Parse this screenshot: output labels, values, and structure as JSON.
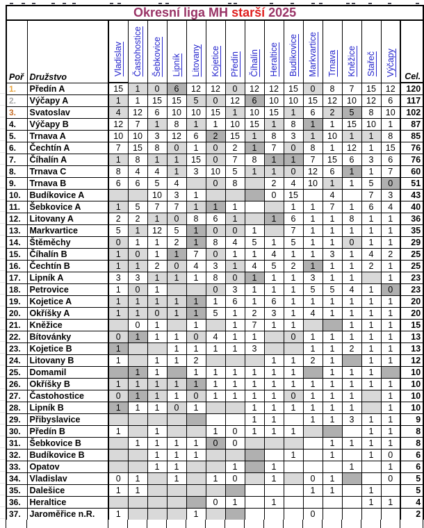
{
  "title": {
    "league": "Okresní liga MH ",
    "category": "starší",
    "year": " 2025"
  },
  "columns": {
    "rank": "Poř",
    "team": "Družstvo",
    "total": "Cel.",
    "events": [
      "Vladislav",
      "Častohostice",
      "Šebkovice",
      "Lipník",
      "Litovany",
      "Kojetice",
      "Předín",
      "Číhalín",
      "Heraltice",
      "Budíkovice",
      "Markvartice",
      "Trnava",
      "Kněžice",
      "Stařeč",
      "Výčapy"
    ]
  },
  "colors": {
    "title_purple": "#993366",
    "title_red": "#e02020",
    "link_blue": "#2222cc",
    "rank_gold": "#e8a33d",
    "rank_silver": "#a8a8a8",
    "rank_bronze": "#c8702b",
    "shade_light": "#d9d9d9",
    "shade_dark": "#b0b0b0"
  },
  "rows": [
    {
      "rank": "1.",
      "team": "Předín A",
      "medal": "gold",
      "cells": [
        "15",
        "1",
        "0",
        "6",
        "12",
        "12",
        "0",
        "12",
        "12",
        "15",
        "0",
        "8",
        "7",
        "15",
        "12"
      ],
      "total": "120",
      "shade_light": [
        1,
        2,
        6,
        10
      ],
      "shade_dark": [
        3
      ]
    },
    {
      "rank": "2.",
      "team": "Výčapy A",
      "medal": "silver",
      "cells": [
        "1",
        "1",
        "15",
        "15",
        "5",
        "0",
        "12",
        "6",
        "10",
        "10",
        "15",
        "12",
        "10",
        "12",
        "6"
      ],
      "total": "117",
      "shade_light": [
        0,
        4,
        5
      ],
      "shade_dark": [
        7
      ]
    },
    {
      "rank": "3.",
      "team": "Svatoslav",
      "medal": "bronze",
      "cells": [
        "4",
        "12",
        "6",
        "10",
        "10",
        "15",
        "1",
        "10",
        "15",
        "1",
        "6",
        "2",
        "5",
        "8",
        "10"
      ],
      "total": "102",
      "shade_light": [
        0,
        6,
        9,
        11
      ],
      "shade_dark": [
        12
      ]
    },
    {
      "rank": "4.",
      "team": "Výčapy B",
      "cells": [
        "12",
        "7",
        "1",
        "8",
        "1",
        "1",
        "10",
        "15",
        "1",
        "8",
        "1",
        "1",
        "15",
        "10",
        "1"
      ],
      "total": "87",
      "shade_light": [
        2,
        4,
        8
      ],
      "shade_dark": [
        10
      ]
    },
    {
      "rank": "5.",
      "team": "Trnava A",
      "cells": [
        "10",
        "10",
        "3",
        "12",
        "6",
        "2",
        "15",
        "1",
        "8",
        "3",
        "1",
        "10",
        "1",
        "1",
        "8"
      ],
      "total": "85",
      "shade_light": [
        7,
        10,
        12,
        13
      ],
      "shade_dark": [
        5
      ]
    },
    {
      "rank": "6.",
      "team": "Čechtín A",
      "cells": [
        "7",
        "15",
        "8",
        "0",
        "1",
        "0",
        "2",
        "1",
        "7",
        "0",
        "8",
        "1",
        "12",
        "1",
        "15"
      ],
      "total": "76",
      "shade_light": [
        3,
        5,
        9
      ],
      "shade_dark": [
        7
      ]
    },
    {
      "rank": "7.",
      "team": "Číhalín A",
      "cells": [
        "1",
        "8",
        "1",
        "1",
        "15",
        "0",
        "7",
        "8",
        "1",
        "1",
        "7",
        "15",
        "6",
        "3",
        "6"
      ],
      "total": "76",
      "shade_light": [
        0,
        2,
        3,
        5
      ],
      "shade_dark": [
        8,
        9
      ]
    },
    {
      "rank": "8.",
      "team": "Trnava C",
      "cells": [
        "8",
        "4",
        "4",
        "1",
        "3",
        "10",
        "5",
        "1",
        "1",
        "0",
        "12",
        "6",
        "1",
        "1",
        "7"
      ],
      "total": "60",
      "shade_light": [
        3,
        7,
        8,
        9
      ],
      "shade_dark": [
        12
      ]
    },
    {
      "rank": "9.",
      "team": "Trnava B",
      "cells": [
        "6",
        "6",
        "5",
        "4",
        "",
        "0",
        "8",
        "",
        "2",
        "4",
        "10",
        "1",
        "1",
        "5",
        "0"
      ],
      "total": "51",
      "shade_light": [
        4,
        5,
        7,
        11
      ],
      "shade_dark": [
        14
      ]
    },
    {
      "rank": "10.",
      "team": "Budíkovice A",
      "cells": [
        "",
        "",
        "10",
        "3",
        "1",
        "",
        "",
        "",
        "0",
        "15",
        "",
        "4",
        "",
        "7",
        "3"
      ],
      "total": "43",
      "shade_light": [
        0,
        1,
        5,
        6
      ],
      "shade_dark": [
        7
      ]
    },
    {
      "rank": "11.",
      "team": "Šebkovice A",
      "cells": [
        "1",
        "5",
        "7",
        "7",
        "1",
        "1",
        "1",
        "",
        "",
        "1",
        "1",
        "7",
        "1",
        "6",
        "4"
      ],
      "total": "40",
      "shade_light": [
        0,
        4,
        8
      ],
      "shade_dark": [
        5
      ]
    },
    {
      "rank": "12.",
      "team": "Litovany A",
      "cells": [
        "2",
        "2",
        "1",
        "0",
        "8",
        "6",
        "1",
        "",
        "1",
        "6",
        "1",
        "1",
        "8",
        "1",
        "1"
      ],
      "total": "36",
      "shade_light": [
        2,
        3,
        6,
        7
      ],
      "shade_dark": [
        8
      ]
    },
    {
      "rank": "13.",
      "team": "Markvartice",
      "cells": [
        "5",
        "1",
        "12",
        "5",
        "1",
        "0",
        "0",
        "1",
        "",
        "7",
        "1",
        "1",
        "1",
        "1",
        "1"
      ],
      "total": "35",
      "shade_light": [
        1,
        5,
        6,
        8
      ],
      "shade_dark": [
        4
      ]
    },
    {
      "rank": "14.",
      "team": "Štěměchy",
      "cells": [
        "0",
        "1",
        "1",
        "2",
        "1",
        "8",
        "4",
        "5",
        "1",
        "5",
        "1",
        "1",
        "0",
        "1",
        "1"
      ],
      "total": "29",
      "shade_light": [
        0,
        12
      ],
      "shade_dark": [
        4
      ]
    },
    {
      "rank": "15.",
      "team": "Číhalín B",
      "cells": [
        "1",
        "0",
        "1",
        "1",
        "7",
        "0",
        "1",
        "1",
        "4",
        "1",
        "1",
        "3",
        "1",
        "4",
        "2"
      ],
      "total": "25",
      "shade_light": [
        0,
        1,
        5
      ],
      "shade_dark": [
        3
      ]
    },
    {
      "rank": "16.",
      "team": "Čechtín B",
      "cells": [
        "1",
        "1",
        "2",
        "0",
        "4",
        "3",
        "1",
        "4",
        "5",
        "2",
        "1",
        "1",
        "1",
        "2",
        "1"
      ],
      "total": "25",
      "shade_light": [
        0,
        1,
        3,
        6
      ],
      "shade_dark": [
        10
      ]
    },
    {
      "rank": "17.",
      "team": "Lipník A",
      "cells": [
        "3",
        "3",
        "1",
        "1",
        "1",
        "8",
        "0",
        "1",
        "1",
        "1",
        "3",
        "1",
        "1",
        "",
        "1"
      ],
      "total": "23",
      "shade_light": [
        2,
        3,
        6,
        13
      ],
      "shade_dark": [
        7
      ]
    },
    {
      "rank": "18.",
      "team": "Petrovice",
      "cells": [
        "1",
        "0",
        "1",
        "",
        "",
        "0",
        "3",
        "1",
        "1",
        "1",
        "5",
        "5",
        "4",
        "1",
        "0"
      ],
      "total": "23",
      "shade_light": [
        1,
        3,
        4,
        5
      ],
      "shade_dark": [
        14
      ]
    },
    {
      "rank": "19.",
      "team": "Kojetice A",
      "cells": [
        "1",
        "1",
        "1",
        "1",
        "1",
        "1",
        "6",
        "1",
        "6",
        "1",
        "1",
        "1",
        "1",
        "1",
        "1"
      ],
      "total": "20",
      "shade_light": [
        0,
        1,
        2,
        3
      ],
      "shade_dark": [
        4
      ]
    },
    {
      "rank": "20.",
      "team": "Okříšky A",
      "cells": [
        "1",
        "1",
        "0",
        "1",
        "1",
        "5",
        "1",
        "2",
        "3",
        "1",
        "4",
        "1",
        "1",
        "1",
        "1"
      ],
      "total": "20",
      "shade_light": [
        0,
        1,
        2,
        3
      ],
      "shade_dark": [
        4
      ]
    },
    {
      "rank": "21.",
      "team": "Kněžice",
      "cells": [
        "",
        "0",
        "1",
        "",
        "1",
        "",
        "1",
        "7",
        "1",
        "1",
        "",
        "",
        "1",
        "1",
        "1"
      ],
      "total": "15",
      "shade_light": [
        0,
        3,
        5,
        10
      ],
      "shade_dark": [
        11
      ]
    },
    {
      "rank": "22.",
      "team": "Bítovánky",
      "cells": [
        "0",
        "1",
        "1",
        "1",
        "0",
        "4",
        "1",
        "1",
        "",
        "0",
        "1",
        "1",
        "1",
        "1",
        "1"
      ],
      "total": "13",
      "shade_light": [
        0,
        4,
        8,
        9
      ],
      "shade_dark": [
        1
      ]
    },
    {
      "rank": "23.",
      "team": "Kojetice B",
      "cells": [
        "1",
        "",
        "",
        "1",
        "1",
        "1",
        "1",
        "3",
        "",
        "",
        "1",
        "1",
        "2",
        "1",
        "1"
      ],
      "total": "13",
      "shade_light": [
        1,
        2,
        8,
        9
      ],
      "shade_dark": [
        0
      ]
    },
    {
      "rank": "24.",
      "team": "Litovany B",
      "cells": [
        "1",
        "",
        "1",
        "1",
        "2",
        "",
        "",
        "",
        "1",
        "1",
        "2",
        "1",
        "",
        "1",
        "1"
      ],
      "total": "12",
      "shade_light": [
        1,
        5,
        6,
        7
      ],
      "shade_dark": [
        12
      ]
    },
    {
      "rank": "25.",
      "team": "Domamil",
      "cells": [
        "",
        "1",
        "1",
        "",
        "1",
        "1",
        "1",
        "1",
        "1",
        "1",
        "",
        "1",
        "1",
        "1",
        ""
      ],
      "total": "10",
      "shade_light": [],
      "shade_dark": [
        0,
        1,
        3,
        10,
        14
      ]
    },
    {
      "rank": "26.",
      "team": "Okříšky B",
      "cells": [
        "1",
        "1",
        "1",
        "1",
        "1",
        "1",
        "1",
        "1",
        "1",
        "1",
        "1",
        "1",
        "1",
        "1",
        "1"
      ],
      "total": "10",
      "shade_light": [
        0,
        1,
        2,
        3
      ],
      "shade_dark": [
        4
      ]
    },
    {
      "rank": "27.",
      "team": "Častohostice",
      "cells": [
        "0",
        "1",
        "1",
        "1",
        "0",
        "1",
        "1",
        "1",
        "1",
        "0",
        "1",
        "1",
        "1",
        "",
        "1"
      ],
      "total": "10",
      "shade_light": [
        0,
        2,
        4,
        9,
        13
      ],
      "shade_dark": [
        1
      ]
    },
    {
      "rank": "28.",
      "team": "Lipník B",
      "cells": [
        "1",
        "1",
        "1",
        "0",
        "1",
        "",
        "",
        "1",
        "1",
        "1",
        "1",
        "1",
        "1",
        "",
        "1"
      ],
      "total": "10",
      "shade_light": [
        3,
        5,
        6,
        13
      ],
      "shade_dark": [
        0
      ]
    },
    {
      "rank": "29.",
      "team": "Přibyslavice",
      "cells": [
        "",
        "",
        "",
        "",
        "",
        "",
        "",
        "1",
        "1",
        "",
        "1",
        "1",
        "3",
        "1",
        "1"
      ],
      "total": "9",
      "shade_light": [
        0,
        1,
        2,
        3
      ],
      "shade_dark": [
        4
      ]
    },
    {
      "rank": "30.",
      "team": "Předín B",
      "cells": [
        "1",
        "",
        "1",
        "",
        "",
        "1",
        "0",
        "1",
        "1",
        "1",
        "",
        "",
        "",
        "1",
        "1"
      ],
      "total": "8",
      "shade_light": [
        1,
        3,
        4,
        10
      ],
      "shade_dark": [
        11
      ]
    },
    {
      "rank": "31.",
      "team": "Šebkovice B",
      "cells": [
        "",
        "1",
        "1",
        "1",
        "1",
        "0",
        "0",
        "",
        "",
        "",
        "",
        "1",
        "1",
        "1",
        "1"
      ],
      "total": "8",
      "shade_light": [
        0,
        7,
        8,
        9
      ],
      "shade_dark": [
        5
      ]
    },
    {
      "rank": "32.",
      "team": "Budíkovice B",
      "cells": [
        "",
        "",
        "1",
        "1",
        "1",
        "",
        "",
        "",
        "",
        "1",
        "",
        "1",
        "",
        "1",
        "0"
      ],
      "total": "6",
      "shade_light": [
        0,
        1,
        5,
        6
      ],
      "shade_dark": [
        7
      ]
    },
    {
      "rank": "33.",
      "team": "Opatov",
      "cells": [
        "",
        "",
        "1",
        "1",
        "",
        "",
        "1",
        "",
        "1",
        "",
        "",
        "",
        "1",
        "",
        "1"
      ],
      "total": "6",
      "shade_light": [
        0,
        1,
        4,
        5
      ],
      "shade_dark": [
        7
      ]
    },
    {
      "rank": "34.",
      "team": "Vladislav",
      "cells": [
        "0",
        "1",
        "",
        "1",
        "",
        "1",
        "0",
        "",
        "1",
        "",
        "0",
        "1",
        "",
        "",
        "0"
      ],
      "total": "5",
      "shade_light": [
        2,
        4,
        7,
        9
      ],
      "shade_dark": [
        12
      ]
    },
    {
      "rank": "35.",
      "team": "Dalešice",
      "cells": [
        "1",
        "1",
        "",
        "",
        "",
        "",
        "",
        "",
        "",
        "",
        "1",
        "1",
        "",
        "1",
        ""
      ],
      "total": "5",
      "shade_light": [
        2,
        3,
        4,
        5
      ],
      "shade_dark": [
        6
      ]
    },
    {
      "rank": "36.",
      "team": "Heraltice",
      "cells": [
        "",
        "",
        "",
        "",
        "",
        "0",
        "1",
        "",
        "1",
        "",
        "",
        "",
        "",
        "1",
        "1"
      ],
      "total": "4",
      "shade_light": [
        0,
        1,
        2,
        3
      ],
      "shade_dark": [
        4
      ]
    },
    {
      "rank": "37.",
      "team": "Jaroměřice n.R.",
      "cells": [
        "1",
        "",
        "",
        "",
        "1",
        "",
        "",
        "",
        "",
        "",
        "0",
        "",
        "",
        "",
        ""
      ],
      "total": "2",
      "shade_light": [
        1,
        2,
        3,
        5
      ],
      "shade_dark": [
        6
      ]
    }
  ]
}
